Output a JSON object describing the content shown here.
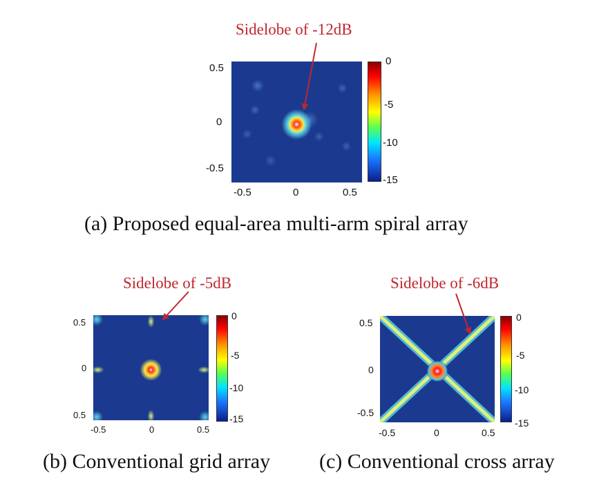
{
  "panel_a": {
    "annotation": "Sidelobe of -12dB",
    "caption": "(a) Proposed equal-area multi-arm spiral array",
    "x_ticks": [
      "-0.5",
      "0",
      "0.5"
    ],
    "y_ticks": [
      "0.5",
      "0",
      "-0.5"
    ],
    "colorbar_ticks": [
      "0",
      "-5",
      "-10",
      "-15"
    ]
  },
  "panel_b": {
    "annotation": "Sidelobe of -5dB",
    "caption": "(b) Conventional grid array",
    "x_ticks": [
      "-0.5",
      "0",
      "0.5"
    ],
    "y_ticks": [
      "0.5",
      "0",
      "0.5"
    ],
    "colorbar_ticks": [
      "0",
      "-5",
      "-10",
      "-15"
    ]
  },
  "panel_c": {
    "annotation": "Sidelobe of -6dB",
    "caption": "(c) Conventional cross array",
    "x_ticks": [
      "-0.5",
      "0",
      "0.5"
    ],
    "y_ticks": [
      "0.5",
      "0",
      "-0.5"
    ],
    "colorbar_ticks": [
      "0",
      "-5",
      "-10",
      "-15"
    ]
  },
  "chart_data": [
    {
      "type": "heatmap",
      "xlim": [
        -0.6,
        0.6
      ],
      "ylim": [
        -0.6,
        0.6
      ],
      "colorbar_range_db": [
        -15,
        0
      ],
      "annotation": "Sidelobe of -12dB"
    },
    {
      "type": "heatmap",
      "xlim": [
        -0.6,
        0.6
      ],
      "ylim": [
        -0.6,
        0.6
      ],
      "colorbar_range_db": [
        -15,
        0
      ],
      "annotation": "Sidelobe of -5dB"
    },
    {
      "type": "heatmap",
      "xlim": [
        -0.6,
        0.6
      ],
      "ylim": [
        -0.6,
        0.6
      ],
      "colorbar_range_db": [
        -15,
        0
      ],
      "annotation": "Sidelobe of -6dB"
    }
  ]
}
